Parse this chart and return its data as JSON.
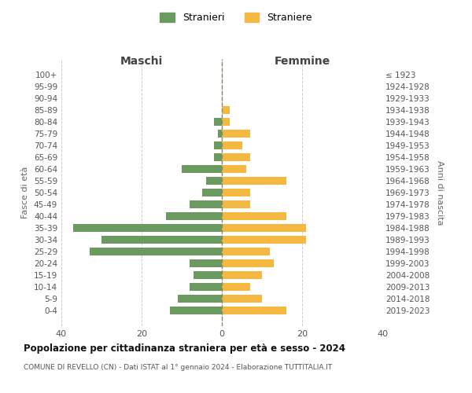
{
  "age_groups": [
    "100+",
    "95-99",
    "90-94",
    "85-89",
    "80-84",
    "75-79",
    "70-74",
    "65-69",
    "60-64",
    "55-59",
    "50-54",
    "45-49",
    "40-44",
    "35-39",
    "30-34",
    "25-29",
    "20-24",
    "15-19",
    "10-14",
    "5-9",
    "0-4"
  ],
  "birth_years": [
    "≤ 1923",
    "1924-1928",
    "1929-1933",
    "1934-1938",
    "1939-1943",
    "1944-1948",
    "1949-1953",
    "1954-1958",
    "1959-1963",
    "1964-1968",
    "1969-1973",
    "1974-1978",
    "1979-1983",
    "1984-1988",
    "1989-1993",
    "1994-1998",
    "1999-2003",
    "2004-2008",
    "2009-2013",
    "2014-2018",
    "2019-2023"
  ],
  "maschi": [
    0,
    0,
    0,
    0,
    2,
    1,
    2,
    2,
    10,
    4,
    5,
    8,
    14,
    37,
    30,
    33,
    8,
    7,
    8,
    11,
    13
  ],
  "femmine": [
    0,
    0,
    0,
    2,
    2,
    7,
    5,
    7,
    6,
    16,
    7,
    7,
    16,
    21,
    21,
    12,
    13,
    10,
    7,
    10,
    16
  ],
  "male_color": "#6a9a5f",
  "female_color": "#f5b942",
  "background_color": "#ffffff",
  "grid_color": "#cccccc",
  "title": "Popolazione per cittadinanza straniera per età e sesso - 2024",
  "subtitle": "COMUNE DI REVELLO (CN) - Dati ISTAT al 1° gennaio 2024 - Elaborazione TUTTITALIA.IT",
  "xlabel_left": "Maschi",
  "xlabel_right": "Femmine",
  "ylabel_left": "Fasce di età",
  "ylabel_right": "Anni di nascita",
  "legend_stranieri": "Stranieri",
  "legend_straniere": "Straniere",
  "xlim": 40
}
